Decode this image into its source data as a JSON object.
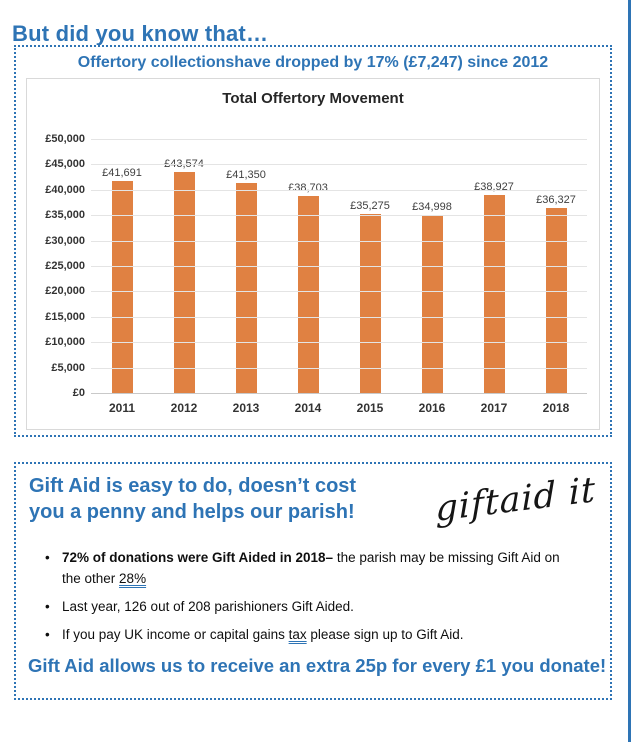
{
  "page": {
    "title": "But did you know that…",
    "accent_color": "#2E74B5"
  },
  "offertory_box": {
    "heading": "Offertory collectionshave dropped by 17% (£7,247) since 2012"
  },
  "chart_data": {
    "type": "bar",
    "title": "Total Offertory Movement",
    "categories": [
      "2011",
      "2012",
      "2013",
      "2014",
      "2015",
      "2016",
      "2017",
      "2018"
    ],
    "values": [
      41691,
      43574,
      41350,
      38703,
      35275,
      34998,
      38927,
      36327
    ],
    "data_labels": [
      "£41,691",
      "£43,574",
      "£41,350",
      "£38,703",
      "£35,275",
      "£34,998",
      "£38,927",
      "£36,327"
    ],
    "y_ticks_top_down": [
      "£50,000",
      "£45,000",
      "£40,000",
      "£35,000",
      "£30,000",
      "£25,000",
      "£20,000",
      "£15,000",
      "£10,000",
      "£5,000",
      "£0"
    ],
    "ylim": [
      0,
      50000
    ],
    "grid": true,
    "legend": false,
    "bar_color": "#E08142",
    "xlabel": "",
    "ylabel": ""
  },
  "giftaid_box": {
    "heading_line1": "Gift Aid is easy to do, doesn’t cost",
    "heading_line2": "you a penny and helps our parish!",
    "logo_text": "giftaid it",
    "bullet_glyph": "•",
    "bullets": [
      {
        "segments": [
          {
            "text": "72% of donations were Gift Aided in 2018–",
            "bold": true
          },
          {
            "text": " the parish may be missing Gift Aid on the other "
          },
          {
            "text": "28%",
            "underline": true
          }
        ]
      },
      {
        "segments": [
          {
            "text": "Last year, 126 out of 208 parishioners Gift Aided."
          }
        ]
      },
      {
        "segments": [
          {
            "text": "If you pay UK income or capital gains "
          },
          {
            "text": "tax",
            "underline": true
          },
          {
            "text": " please sign up to Gift Aid."
          }
        ]
      }
    ],
    "footer": "Gift Aid allows us to receive an extra 25p for every £1 you donate!"
  }
}
